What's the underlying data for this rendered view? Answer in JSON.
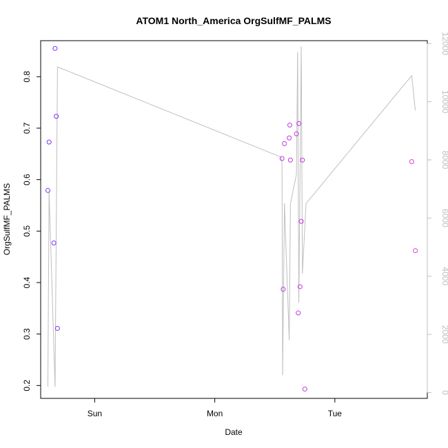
{
  "chart_data": {
    "type": "scatter",
    "title": "ATOM1 North_America OrgSulfMF_PALMS",
    "xlabel": "Date",
    "ylabel": "OrgSulfMF_PALMS",
    "x_ticks": [
      {
        "label": "Sun",
        "day": 1.0
      },
      {
        "label": "Mon",
        "day": 2.0
      },
      {
        "label": "Tue",
        "day": 3.0
      }
    ],
    "xlim_days": [
      0.55,
      3.77
    ],
    "ylim": [
      0.175,
      0.87
    ],
    "y_ticks": [
      0.2,
      0.3,
      0.4,
      0.5,
      0.6,
      0.7,
      0.8
    ],
    "y2lim": [
      -200,
      12100
    ],
    "y2_ticks": [
      0,
      2000,
      4000,
      6000,
      8000,
      10000,
      12000
    ],
    "points": [
      {
        "day": 0.61,
        "value": 0.579
      },
      {
        "day": 0.62,
        "value": 0.673
      },
      {
        "day": 0.66,
        "value": 0.477
      },
      {
        "day": 0.67,
        "value": 0.855
      },
      {
        "day": 0.68,
        "value": 0.723
      },
      {
        "day": 0.69,
        "value": 0.311
      },
      {
        "day": 2.56,
        "value": 0.641
      },
      {
        "day": 2.57,
        "value": 0.387
      },
      {
        "day": 2.58,
        "value": 0.67
      },
      {
        "day": 2.62,
        "value": 0.681
      },
      {
        "day": 2.625,
        "value": 0.706
      },
      {
        "day": 2.63,
        "value": 0.638
      },
      {
        "day": 2.68,
        "value": 0.689
      },
      {
        "day": 2.695,
        "value": 0.341
      },
      {
        "day": 2.7,
        "value": 0.709
      },
      {
        "day": 2.71,
        "value": 0.392
      },
      {
        "day": 2.72,
        "value": 0.519
      },
      {
        "day": 2.73,
        "value": 0.638
      },
      {
        "day": 2.75,
        "value": 0.193
      },
      {
        "day": 3.64,
        "value": 0.635
      },
      {
        "day": 3.67,
        "value": 0.462
      }
    ],
    "line_series": {
      "axis": "right",
      "points": [
        {
          "day": 0.61,
          "value": 200
        },
        {
          "day": 0.62,
          "value": 6900
        },
        {
          "day": 0.67,
          "value": 200
        },
        {
          "day": 0.69,
          "value": 11200
        },
        {
          "day": 2.55,
          "value": 8100
        },
        {
          "day": 2.56,
          "value": 7900
        },
        {
          "day": 2.565,
          "value": 600
        },
        {
          "day": 2.58,
          "value": 6500
        },
        {
          "day": 2.61,
          "value": 3000
        },
        {
          "day": 2.62,
          "value": 1800
        },
        {
          "day": 2.63,
          "value": 6500
        },
        {
          "day": 2.68,
          "value": 7500
        },
        {
          "day": 2.69,
          "value": 11700
        },
        {
          "day": 2.7,
          "value": 3100
        },
        {
          "day": 2.72,
          "value": 11900
        },
        {
          "day": 2.73,
          "value": 4100
        },
        {
          "day": 2.76,
          "value": 6500
        },
        {
          "day": 3.64,
          "value": 10900
        },
        {
          "day": 3.67,
          "value": 9700
        }
      ]
    },
    "colors": {
      "point_start": "#7b2ff7",
      "point_end": "#e23bd9",
      "line": "#bebebe",
      "right_axis": "#bebebe",
      "axis": "#000000"
    }
  }
}
